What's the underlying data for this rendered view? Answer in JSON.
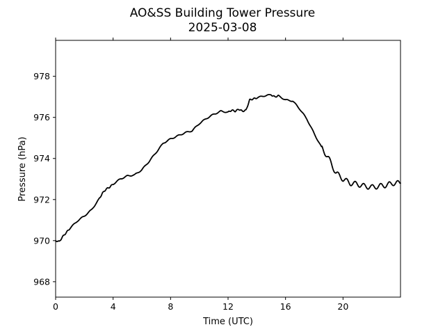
{
  "chart_data": {
    "type": "line",
    "title": "AO&SS Building Tower Pressure",
    "subtitle": "2025-03-08",
    "xlabel": "Time (UTC)",
    "ylabel": "Pressure (hPa)",
    "xlim": [
      0,
      24
    ],
    "ylim": [
      967.25,
      979.75
    ],
    "x_ticks": [
      0,
      4,
      8,
      12,
      16,
      20
    ],
    "x_tick_labels": [
      "0",
      "4",
      "8",
      "12",
      "16",
      "20"
    ],
    "y_ticks": [
      968,
      970,
      972,
      974,
      976,
      978
    ],
    "y_tick_labels": [
      "968",
      "970",
      "972",
      "974",
      "976",
      "978"
    ],
    "grid": false,
    "line_color": "#000000",
    "series": [
      {
        "x": [
          0,
          0.25,
          0.5,
          0.75,
          1,
          1.5,
          2,
          2.5,
          3,
          3.25,
          3.5,
          3.75,
          4,
          4.5,
          5,
          5.5,
          6,
          6.5,
          7,
          7.5,
          8,
          8.5,
          9,
          9.5,
          10,
          10.5,
          11,
          11.5,
          12,
          12.25,
          12.5,
          12.75,
          13,
          13.25,
          13.5,
          13.75,
          14,
          14.5,
          15,
          15.25,
          15.5,
          16,
          16.5,
          17,
          17.5,
          18,
          18.5,
          19,
          19.5,
          20,
          20.5,
          21,
          21.5,
          22,
          22.5,
          23,
          23.5,
          24
        ],
        "y": [
          970.0,
          969.95,
          970.2,
          970.4,
          970.6,
          970.95,
          971.2,
          971.5,
          972.0,
          972.3,
          972.5,
          972.6,
          972.75,
          973.0,
          973.15,
          973.2,
          973.45,
          973.85,
          974.3,
          974.75,
          974.95,
          975.1,
          975.25,
          975.35,
          975.7,
          975.95,
          976.15,
          976.3,
          976.25,
          976.35,
          976.3,
          976.4,
          976.3,
          976.35,
          976.85,
          976.9,
          976.95,
          977.05,
          977.1,
          977.0,
          977.05,
          976.85,
          976.8,
          976.4,
          975.9,
          975.2,
          974.55,
          974.0,
          973.3,
          973.0,
          972.8,
          972.75,
          972.65,
          972.6,
          972.65,
          972.7,
          972.8,
          972.8
        ]
      }
    ]
  }
}
